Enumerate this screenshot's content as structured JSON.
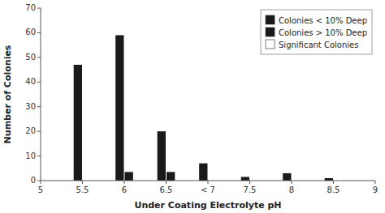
{
  "chart_data": {
    "type": "bar",
    "x_label": "Under Coating Electrolyte pH",
    "y_label": "Number of Colonies",
    "x": [
      5.5,
      6.0,
      6.5,
      7.0,
      7.5,
      8.0,
      8.5
    ],
    "series": [
      {
        "name": "Colonies < 10% Deep",
        "color": "#1a1a1a",
        "values": [
          47,
          59,
          20,
          7,
          1.5,
          3,
          1
        ]
      },
      {
        "name": "Colonies > 10% Deep",
        "color": "#1a1a1a",
        "values": [
          0,
          3.5,
          3.5,
          0,
          0,
          0,
          0
        ]
      },
      {
        "name": "Significant Colonies",
        "color": "#ffffff",
        "values": [
          null,
          null,
          null,
          null,
          null,
          null,
          null
        ]
      }
    ],
    "xlim": [
      5,
      9
    ],
    "xticks": [
      5,
      5.5,
      6,
      6.5,
      {
        "value": 7,
        "label": "< 7"
      },
      7.5,
      8,
      8.5,
      9
    ],
    "ylim": [
      0,
      70
    ],
    "yticks": [
      0,
      10,
      20,
      30,
      40,
      50,
      60,
      70
    ],
    "grid": false,
    "legend": "upper right"
  }
}
